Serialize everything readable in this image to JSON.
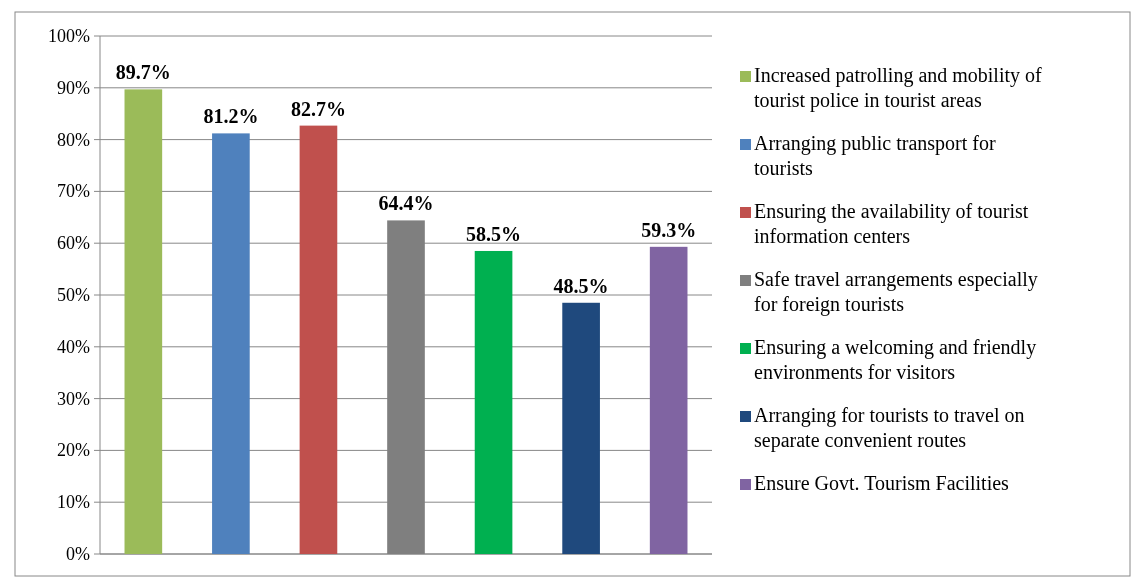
{
  "chart_data": {
    "type": "bar",
    "categories": [
      null,
      null,
      null,
      null,
      null,
      null,
      null
    ],
    "series": [
      {
        "name": "Increased patrolling and mobility of tourist police in tourist areas",
        "color": "#9bbb59",
        "values": [
          89.7,
          null,
          null,
          null,
          null,
          null,
          null
        ],
        "value_labels": [
          "89.7%",
          null,
          null,
          null,
          null,
          null,
          null
        ]
      },
      {
        "name": "Arranging public transport for tourists",
        "color": "#4f81bd",
        "values": [
          null,
          81.2,
          null,
          null,
          null,
          null,
          null
        ],
        "value_labels": [
          null,
          "81.2%",
          null,
          null,
          null,
          null,
          null
        ]
      },
      {
        "name": "Ensuring the availability of tourist information centers",
        "color": "#c0504d",
        "values": [
          null,
          null,
          82.7,
          null,
          null,
          null,
          null
        ],
        "value_labels": [
          null,
          null,
          "82.7%",
          null,
          null,
          null,
          null
        ]
      },
      {
        "name": "Safe travel arrangements especially for foreign tourists",
        "color": "#7f7f7f",
        "values": [
          null,
          null,
          null,
          64.4,
          null,
          null,
          null
        ],
        "value_labels": [
          null,
          null,
          null,
          "64.4%",
          null,
          null,
          null
        ]
      },
      {
        "name": "Ensuring a welcoming and friendly environments for visitors",
        "color": "#00b050",
        "values": [
          null,
          null,
          null,
          null,
          58.5,
          null,
          null
        ],
        "value_labels": [
          null,
          null,
          null,
          null,
          "58.5%",
          null,
          null
        ]
      },
      {
        "name": "Arranging for tourists to travel on separate convenient routes",
        "color": "#1f497d",
        "values": [
          null,
          null,
          null,
          null,
          null,
          48.5,
          null
        ],
        "value_labels": [
          null,
          null,
          null,
          null,
          null,
          "48.5%",
          null
        ]
      },
      {
        "name": "Ensure Govt. Tourism Facilities",
        "color": "#8064a2",
        "values": [
          null,
          null,
          null,
          null,
          null,
          null,
          59.3
        ],
        "value_labels": [
          null,
          null,
          null,
          null,
          null,
          null,
          "59.3%"
        ]
      }
    ],
    "ylim": [
      0,
      100
    ],
    "yticks": [
      {
        "value": 0,
        "label": "0%"
      },
      {
        "value": 10,
        "label": "10%"
      },
      {
        "value": 20,
        "label": "20%"
      },
      {
        "value": 30,
        "label": "30%"
      },
      {
        "value": 40,
        "label": "40%"
      },
      {
        "value": 50,
        "label": "50%"
      },
      {
        "value": 60,
        "label": "60%"
      },
      {
        "value": 70,
        "label": "70%"
      },
      {
        "value": 80,
        "label": "80%"
      },
      {
        "value": 90,
        "label": "90%"
      },
      {
        "value": 100,
        "label": "100%"
      }
    ],
    "grid": "y",
    "legend": "right"
  }
}
